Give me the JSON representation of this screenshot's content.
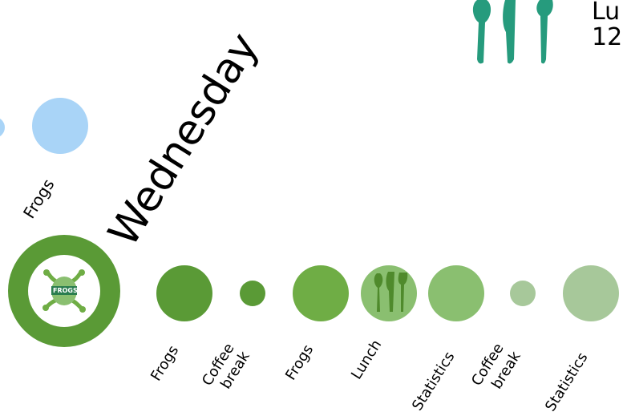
{
  "day": "Wednesday",
  "lunch_header": {
    "title_visible": "Lu",
    "time_visible": "12"
  },
  "top_row": {
    "label": "Frogs"
  },
  "logo": {
    "text": "FROGS"
  },
  "schedule": [
    {
      "label": "Frogs"
    },
    {
      "label": "Coffee",
      "label2": "break"
    },
    {
      "label": "Frogs"
    },
    {
      "label": "Lunch"
    },
    {
      "label": "Statistics"
    },
    {
      "label": "Coffee",
      "label2": "break"
    },
    {
      "label": "Statistics"
    }
  ],
  "colors": {
    "light_blue": "#a9d4f7",
    "dark_green": "#5a9a36",
    "mid_green": "#6fad45",
    "light_green": "#8abf70",
    "pale_green": "#a7c89a",
    "teal_cutlery": "#269b7d"
  },
  "icons": {
    "lunch_large": "cutlery-icon",
    "lunch_small": "cutlery-icon",
    "logo": "frog-logo-icon"
  }
}
